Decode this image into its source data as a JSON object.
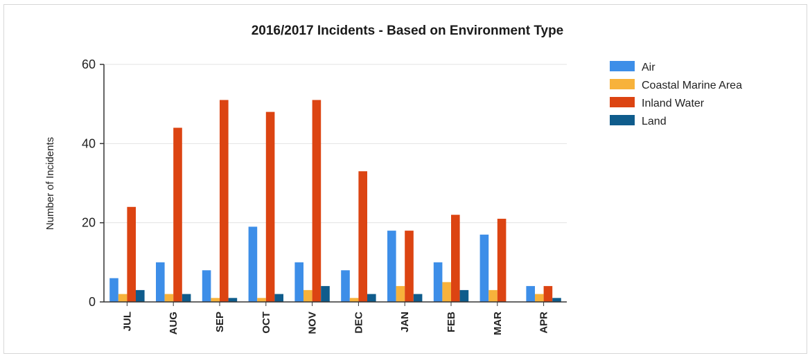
{
  "chart_data": {
    "type": "bar",
    "title": "2016/2017 Incidents - Based on Environment Type",
    "xlabel": "",
    "ylabel": "Number of Incidents",
    "ylim": [
      0,
      60
    ],
    "yticks": [
      "0",
      "20",
      "40",
      "60"
    ],
    "grid": true,
    "legend_position": "right",
    "categories": [
      "JUL",
      "AUG",
      "SEP",
      "OCT",
      "NOV",
      "DEC",
      "JAN",
      "FEB",
      "MAR",
      "APR"
    ],
    "series": [
      {
        "name": "Air",
        "color": "#3d8ee8",
        "values": [
          6,
          10,
          8,
          19,
          10,
          8,
          18,
          10,
          17,
          4
        ]
      },
      {
        "name": "Coastal Marine Area",
        "color": "#f7b23b",
        "values": [
          2,
          2,
          1,
          1,
          3,
          1,
          4,
          5,
          3,
          2
        ]
      },
      {
        "name": "Inland Water",
        "color": "#dc4412",
        "values": [
          24,
          44,
          51,
          48,
          51,
          33,
          18,
          22,
          21,
          4
        ]
      },
      {
        "name": "Land",
        "color": "#0f5c8c",
        "values": [
          3,
          2,
          1,
          2,
          4,
          2,
          2,
          3,
          0,
          1
        ]
      }
    ]
  }
}
